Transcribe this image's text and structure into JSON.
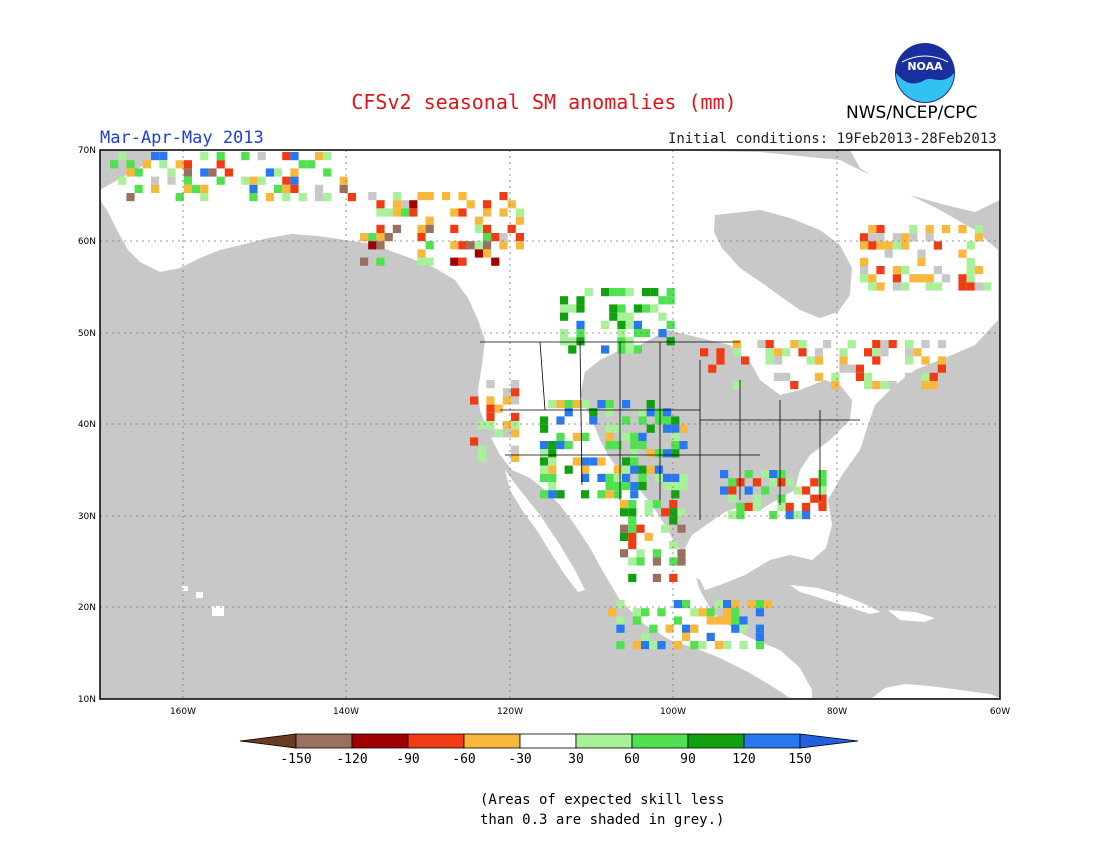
{
  "header": {
    "title": "CFSv2 seasonal SM anomalies (mm)",
    "period": "Mar-Apr-May 2013",
    "initial_conditions": "Initial conditions: 19Feb2013-28Feb2013",
    "agency": "NWS/NCEP/CPC",
    "logo_text": "NOAA"
  },
  "map": {
    "lat_labels": [
      "70N",
      "60N",
      "50N",
      "40N",
      "30N",
      "20N",
      "10N"
    ],
    "lon_labels": [
      "160W",
      "140W",
      "120W",
      "100W",
      "80W",
      "60W"
    ],
    "colors": {
      "ocean": "#c8c8c8",
      "land": "#ffffff",
      "low_skill_grey": "#c8c8c8"
    }
  },
  "legend": {
    "labels": [
      "-150",
      "-120",
      "-90",
      "-60",
      "-30",
      "30",
      "60",
      "90",
      "120",
      "150"
    ],
    "colors": [
      "#6b3b1f",
      "#9a7060",
      "#a00000",
      "#f03c14",
      "#f8b83c",
      "#ffffff",
      "#a8f09a",
      "#50e050",
      "#10a010",
      "#2878f0",
      "#2060e0"
    ]
  },
  "footnote": {
    "line1": "(Areas of expected skill less",
    "line2": "than 0.3 are shaded in grey.)"
  }
}
